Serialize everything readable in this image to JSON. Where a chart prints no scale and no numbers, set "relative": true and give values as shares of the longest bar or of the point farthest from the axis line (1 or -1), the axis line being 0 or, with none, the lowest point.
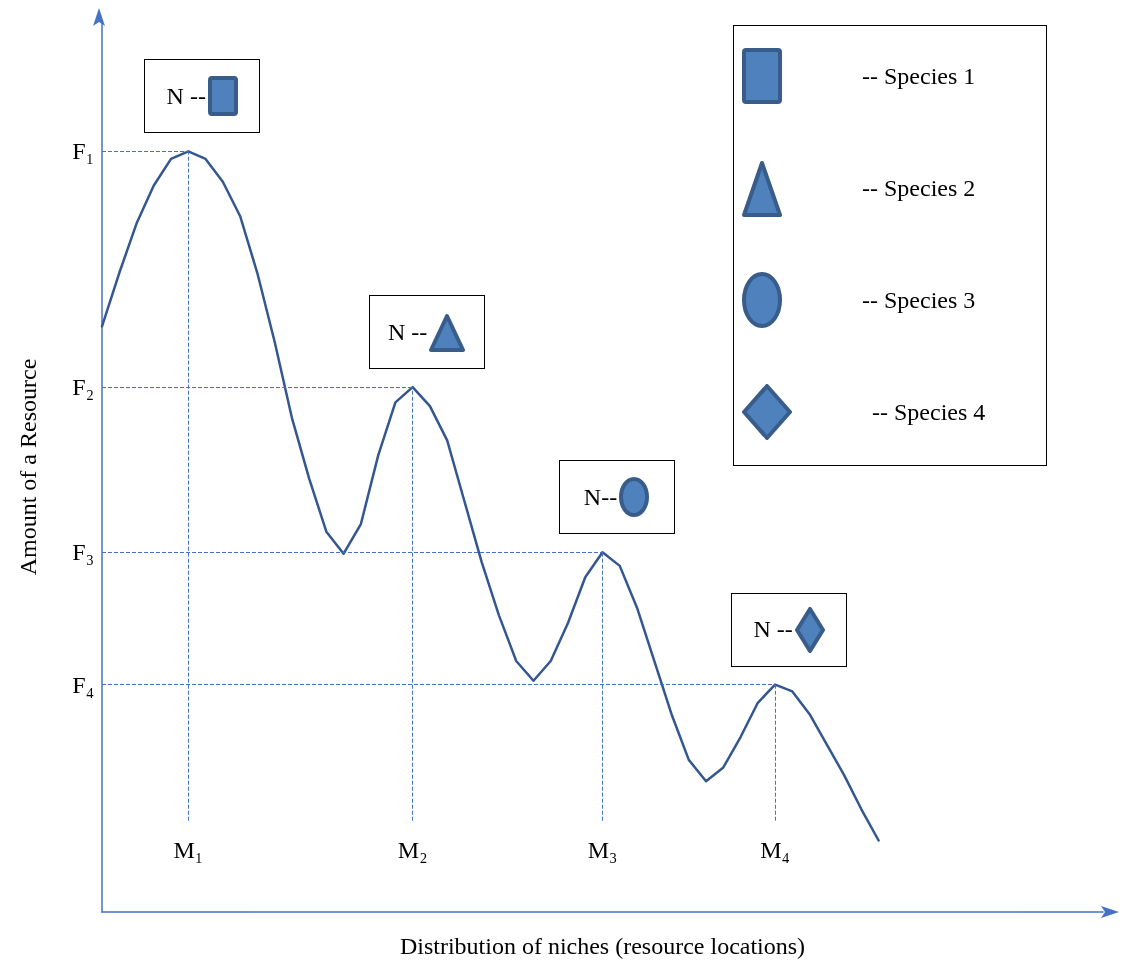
{
  "chart_data": {
    "type": "line",
    "relative": true,
    "xlabel": "Distribution of niches (resource locations)",
    "ylabel": "Amount of a Resource",
    "grid": false,
    "marker": "none",
    "line_style": "solid",
    "categories": [
      null,
      null,
      null,
      null,
      null,
      "M₁",
      null,
      null,
      null,
      null,
      null,
      null,
      null,
      null,
      null,
      null,
      null,
      null,
      "M₂",
      null,
      null,
      null,
      null,
      null,
      null,
      null,
      null,
      null,
      null,
      "M₃",
      null,
      null,
      null,
      null,
      null,
      null,
      null,
      null,
      null,
      "M₄",
      null,
      null,
      null,
      null,
      null,
      null,
      null,
      null,
      null,
      null,
      null,
      null,
      null,
      null,
      null,
      null,
      null,
      null,
      null
    ],
    "series": [
      {
        "color": "#34578f",
        "values": [
          0.77,
          0.84,
          0.905,
          0.955,
          0.99,
          1,
          0.99,
          0.96,
          0.915,
          0.84,
          0.75,
          0.65,
          0.57,
          0.5,
          0.471,
          0.51,
          0.6,
          0.67,
          0.69,
          0.665,
          0.62,
          0.54,
          0.46,
          0.39,
          0.33,
          0.304,
          0.33,
          0.38,
          0.44,
          0.473,
          0.455,
          0.4,
          0.33,
          0.26,
          0.2,
          0.172,
          0.19,
          0.23,
          0.275,
          0.299,
          0.29,
          0.26,
          0.22,
          0.18,
          0.135,
          0.094,
          null,
          null,
          null,
          null,
          null,
          null,
          null,
          null,
          null,
          null,
          null,
          null,
          null
        ]
      }
    ],
    "ref_lines": [
      {
        "axis": "y",
        "value": 1,
        "label": "F₁",
        "color": "#4472c4",
        "line_style": "dashed"
      },
      {
        "axis": "y",
        "value": 0.69,
        "label": "F₂",
        "color": "#4472c4",
        "line_style": "dashed"
      },
      {
        "axis": "y",
        "value": 0.473,
        "label": "F₃",
        "color": "#4472c4",
        "line_style": "dashed"
      },
      {
        "axis": "y",
        "value": 0.299,
        "label": "F₄",
        "color": "#4472c4",
        "line_style": "dashed"
      },
      {
        "axis": "x",
        "value": "M₁",
        "color": "#4472c4",
        "line_style": "dashed"
      },
      {
        "axis": "x",
        "value": "M₂",
        "color": "#4472c4",
        "line_style": "dashed"
      },
      {
        "axis": "x",
        "value": "M₃",
        "color": "#4472c4",
        "line_style": "dashed"
      },
      {
        "axis": "x",
        "value": "M₄",
        "color": "#4472c4",
        "line_style": "dashed"
      }
    ],
    "annotations": [
      {
        "text": "N --",
        "x": "M₁",
        "y": 1
      },
      {
        "text": "N --",
        "x": "M₂",
        "y": 0.69
      },
      {
        "text": "N--",
        "x": "M₃",
        "y": 0.473
      },
      {
        "text": "N --",
        "x": "M₄",
        "y": 0.299
      },
      "-- Species 1",
      "-- Species 2",
      "-- Species 3",
      "-- Species 4"
    ]
  }
}
